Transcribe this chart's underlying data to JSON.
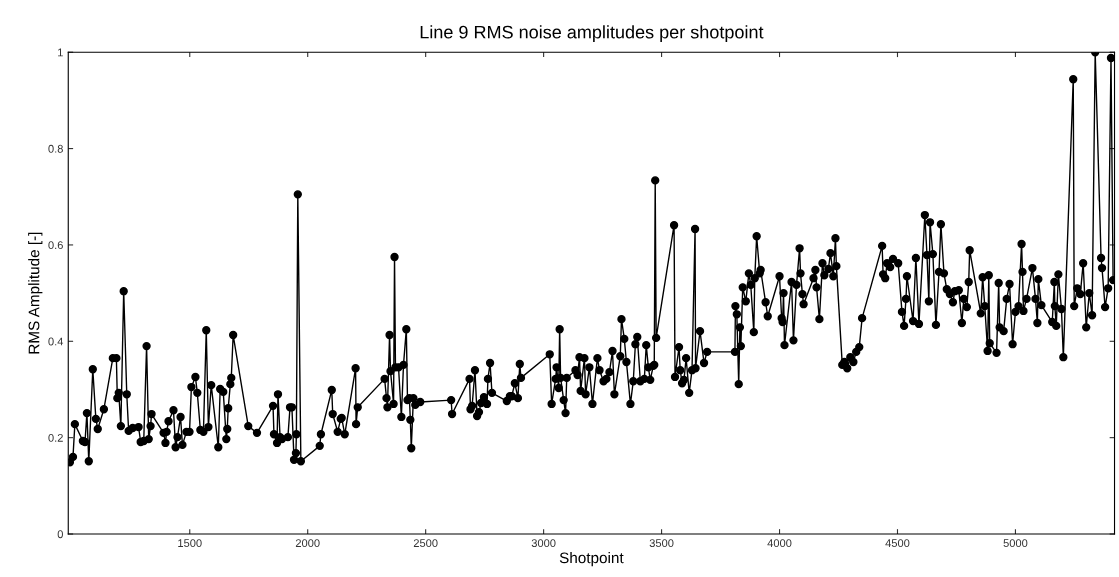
{
  "chart_data": {
    "type": "line",
    "title": "Line 9 RMS noise amplitudes per shotpoint",
    "xlabel": "Shotpoint",
    "ylabel": "RMS Amplitude [-]",
    "xlim": [
      985,
      5420
    ],
    "xticks": [
      1500,
      2000,
      2500,
      3000,
      3500,
      4000,
      4500,
      5000
    ],
    "ylim": [
      0,
      1
    ],
    "yticks": [
      0,
      0.2,
      0.4,
      0.6,
      0.8,
      1
    ],
    "grid": false,
    "legend": false,
    "marker": "circle",
    "line_style": "solid",
    "series": [
      {
        "color": "#000000",
        "x": [
          992,
          1005,
          1013,
          1047,
          1056,
          1064,
          1072,
          1089,
          1102,
          1110,
          1136,
          1174,
          1189,
          1193,
          1199,
          1208,
          1220,
          1233,
          1241,
          1258,
          1283,
          1292,
          1305,
          1317,
          1326,
          1334,
          1338,
          1389,
          1397,
          1402,
          1410,
          1431,
          1440,
          1448,
          1461,
          1469,
          1486,
          1499,
          1507,
          1524,
          1532,
          1545,
          1558,
          1570,
          1579,
          1591,
          1621,
          1629,
          1642,
          1655,
          1659,
          1663,
          1672,
          1676,
          1684,
          1748,
          1785,
          1853,
          1857,
          1870,
          1874,
          1883,
          1891,
          1916,
          1925,
          1933,
          1942,
          1950,
          1952,
          1958,
          1971,
          2051,
          2056,
          2102,
          2106,
          2127,
          2140,
          2144,
          2157,
          2203,
          2205,
          2212,
          2326,
          2334,
          2338,
          2347,
          2351,
          2364,
          2368,
          2372,
          2385,
          2397,
          2406,
          2418,
          2423,
          2431,
          2435,
          2439,
          2448,
          2456,
          2477,
          2608,
          2612,
          2686,
          2690,
          2697,
          2709,
          2718,
          2726,
          2735,
          2747,
          2760,
          2764,
          2773,
          2781,
          2844,
          2857,
          2865,
          2878,
          2891,
          2899,
          2904,
          3026,
          3034,
          3051,
          3055,
          3064,
          3068,
          3072,
          3085,
          3093,
          3098,
          3135,
          3144,
          3152,
          3157,
          3173,
          3178,
          3194,
          3207,
          3228,
          3237,
          3254,
          3266,
          3279,
          3292,
          3300,
          3325,
          3330,
          3342,
          3351,
          3368,
          3380,
          3389,
          3397,
          3410,
          3427,
          3435,
          3444,
          3452,
          3465,
          3469,
          3473,
          3477,
          3553,
          3557,
          3574,
          3579,
          3587,
          3595,
          3604,
          3617,
          3629,
          3642,
          3644,
          3663,
          3680,
          3693,
          3811,
          3813,
          3819,
          3827,
          3832,
          3836,
          3844,
          3857,
          3870,
          3878,
          3891,
          3895,
          3903,
          3916,
          3920,
          3941,
          3950,
          4000,
          4009,
          4013,
          4017,
          4021,
          4051,
          4059,
          4072,
          4085,
          4089,
          4097,
          4102,
          4144,
          4152,
          4157,
          4169,
          4182,
          4190,
          4207,
          4216,
          4228,
          4237,
          4241,
          4266,
          4275,
          4287,
          4300,
          4313,
          4325,
          4338,
          4350,
          4435,
          4439,
          4448,
          4456,
          4469,
          4481,
          4503,
          4519,
          4528,
          4536,
          4540,
          4566,
          4578,
          4591,
          4616,
          4625,
          4633,
          4638,
          4650,
          4663,
          4676,
          4684,
          4697,
          4709,
          4722,
          4735,
          4743,
          4760,
          4773,
          4781,
          4794,
          4802,
          4806,
          4853,
          4861,
          4870,
          4882,
          4887,
          4891,
          4920,
          4929,
          4933,
          4950,
          4963,
          4975,
          4988,
          5000,
          5013,
          5026,
          5030,
          5034,
          5047,
          5072,
          5085,
          5093,
          5097,
          5110,
          5156,
          5165,
          5167,
          5173,
          5182,
          5195,
          5203,
          5245,
          5249,
          5262,
          5275,
          5287,
          5300,
          5313,
          5325,
          5338,
          5363,
          5367,
          5380,
          5393,
          5405,
          5414
        ],
        "values": [
          0.149,
          0.16,
          0.228,
          0.193,
          0.191,
          0.251,
          0.151,
          0.342,
          0.239,
          0.218,
          0.259,
          0.365,
          0.365,
          0.282,
          0.293,
          0.224,
          0.504,
          0.29,
          0.214,
          0.22,
          0.222,
          0.191,
          0.193,
          0.39,
          0.197,
          0.224,
          0.249,
          0.21,
          0.189,
          0.212,
          0.234,
          0.257,
          0.18,
          0.201,
          0.243,
          0.185,
          0.212,
          0.212,
          0.305,
          0.326,
          0.293,
          0.216,
          0.212,
          0.423,
          0.222,
          0.309,
          0.18,
          0.301,
          0.295,
          0.197,
          0.218,
          0.261,
          0.311,
          0.324,
          0.413,
          0.224,
          0.21,
          0.266,
          0.207,
          0.189,
          0.29,
          0.201,
          0.197,
          0.201,
          0.263,
          0.263,
          0.154,
          0.168,
          0.207,
          0.705,
          0.151,
          0.183,
          0.207,
          0.299,
          0.249,
          0.212,
          0.239,
          0.241,
          0.207,
          0.344,
          0.228,
          0.263,
          0.322,
          0.282,
          0.263,
          0.413,
          0.338,
          0.27,
          0.575,
          0.346,
          0.346,
          0.243,
          0.351,
          0.425,
          0.278,
          0.282,
          0.237,
          0.178,
          0.282,
          0.268,
          0.274,
          0.278,
          0.249,
          0.322,
          0.259,
          0.266,
          0.34,
          0.245,
          0.253,
          0.272,
          0.284,
          0.27,
          0.322,
          0.355,
          0.293,
          0.276,
          0.286,
          0.286,
          0.313,
          0.282,
          0.353,
          0.324,
          0.373,
          0.27,
          0.322,
          0.346,
          0.303,
          0.425,
          0.324,
          0.278,
          0.251,
          0.324,
          0.34,
          0.33,
          0.367,
          0.297,
          0.365,
          0.29,
          0.346,
          0.27,
          0.365,
          0.34,
          0.317,
          0.322,
          0.336,
          0.38,
          0.29,
          0.369,
          0.446,
          0.405,
          0.357,
          0.27,
          0.317,
          0.394,
          0.409,
          0.317,
          0.322,
          0.392,
          0.346,
          0.32,
          0.349,
          0.351,
          0.734,
          0.407,
          0.641,
          0.326,
          0.388,
          0.34,
          0.313,
          0.32,
          0.365,
          0.293,
          0.34,
          0.633,
          0.344,
          0.421,
          0.355,
          0.378,
          0.378,
          0.473,
          0.456,
          0.311,
          0.429,
          0.39,
          0.512,
          0.483,
          0.541,
          0.517,
          0.419,
          0.531,
          0.618,
          0.541,
          0.548,
          0.481,
          0.452,
          0.535,
          0.448,
          0.44,
          0.5,
          0.392,
          0.523,
          0.402,
          0.517,
          0.593,
          0.541,
          0.498,
          0.477,
          0.531,
          0.548,
          0.512,
          0.446,
          0.562,
          0.537,
          0.55,
          0.583,
          0.535,
          0.614,
          0.556,
          0.351,
          0.357,
          0.344,
          0.367,
          0.357,
          0.378,
          0.388,
          0.448,
          0.598,
          0.539,
          0.531,
          0.562,
          0.554,
          0.571,
          0.562,
          0.461,
          0.432,
          0.488,
          0.535,
          0.442,
          0.573,
          0.436,
          0.662,
          0.579,
          0.483,
          0.647,
          0.581,
          0.434,
          0.544,
          0.643,
          0.541,
          0.508,
          0.498,
          0.481,
          0.504,
          0.506,
          0.438,
          0.488,
          0.471,
          0.523,
          0.589,
          0.458,
          0.533,
          0.473,
          0.38,
          0.537,
          0.396,
          0.376,
          0.521,
          0.429,
          0.421,
          0.488,
          0.519,
          0.394,
          0.461,
          0.473,
          0.602,
          0.544,
          0.463,
          0.488,
          0.552,
          0.488,
          0.438,
          0.529,
          0.475,
          0.44,
          0.523,
          0.473,
          0.432,
          0.539,
          0.467,
          0.367,
          0.944,
          0.473,
          0.51,
          0.498,
          0.562,
          0.429,
          0.5,
          0.454,
          1.0,
          0.573,
          0.552,
          0.471,
          0.51,
          0.988,
          0.527
        ]
      }
    ]
  }
}
